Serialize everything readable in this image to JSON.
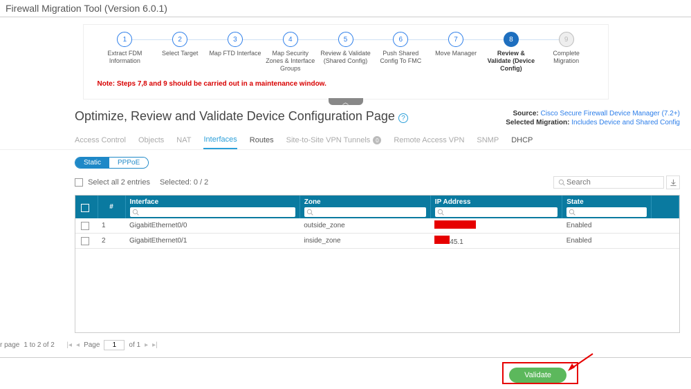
{
  "app_title": "Firewall Migration Tool (Version 6.0.1)",
  "steps": [
    {
      "num": "1",
      "label": "Extract FDM Information"
    },
    {
      "num": "2",
      "label": "Select Target"
    },
    {
      "num": "3",
      "label": "Map FTD Interface"
    },
    {
      "num": "4",
      "label": "Map Security Zones & Interface Groups"
    },
    {
      "num": "5",
      "label": "Review & Validate (Shared Config)"
    },
    {
      "num": "6",
      "label": "Push Shared Config To FMC"
    },
    {
      "num": "7",
      "label": "Move Manager"
    },
    {
      "num": "8",
      "label": "Review & Validate (Device Config)"
    },
    {
      "num": "9",
      "label": "Complete Migration"
    }
  ],
  "active_step_index": 7,
  "done_step_index": 8,
  "note": "Note: Steps 7,8 and 9 should be carried out in a maintenance window.",
  "page_title": "Optimize, Review and Validate Device Configuration Page",
  "source_label": "Source:",
  "source_value": "Cisco Secure Firewall Device Manager (7.2+)",
  "selected_label": "Selected Migration:",
  "selected_value": "Includes Device and Shared Config",
  "tabs": [
    {
      "label": "Access Control",
      "state": "disabled"
    },
    {
      "label": "Objects",
      "state": "disabled"
    },
    {
      "label": "NAT",
      "state": "disabled"
    },
    {
      "label": "Interfaces",
      "state": "active"
    },
    {
      "label": "Routes",
      "state": "enabled"
    },
    {
      "label": "Site-to-Site VPN Tunnels",
      "state": "disabled",
      "badge": "0"
    },
    {
      "label": "Remote Access VPN",
      "state": "disabled"
    },
    {
      "label": "SNMP",
      "state": "disabled"
    },
    {
      "label": "DHCP",
      "state": "enabled"
    }
  ],
  "pill_tabs": {
    "active": "Static",
    "inactive": "PPPoE"
  },
  "select_all_label": "Select all 2 entries",
  "selected_count_label": "Selected: 0 / 2",
  "search_placeholder": "Search",
  "columns": {
    "num": "#",
    "interface": "Interface",
    "zone": "Zone",
    "ip": "IP Address",
    "state": "State"
  },
  "rows": [
    {
      "n": "1",
      "iface": "GigabitEthernet0/0",
      "zone": "outside_zone",
      "ip_mask_w": 60,
      "ip_tail": "",
      "state": "Enabled"
    },
    {
      "n": "2",
      "iface": "GigabitEthernet0/1",
      "zone": "inside_zone",
      "ip_mask_w": 22,
      "ip_tail": "45.1",
      "state": "Enabled"
    }
  ],
  "pager": {
    "summary_prefix": "r page",
    "range": "1 to 2 of 2",
    "page_label_pre": "Page",
    "page_value": "1",
    "page_label_post": "of 1"
  },
  "validate_label": "Validate",
  "collapse_glyph": "︿"
}
